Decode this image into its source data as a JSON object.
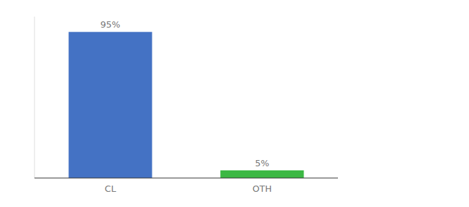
{
  "chart_data": {
    "type": "bar",
    "categories": [
      "CL",
      "OTH"
    ],
    "values": [
      95,
      5
    ],
    "value_labels": [
      "95%",
      "5%"
    ],
    "colors": [
      "#4472c4",
      "#3cb844"
    ],
    "ylim": [
      0,
      105
    ],
    "data_labels": true,
    "tick_labels": "x",
    "grid": false
  }
}
